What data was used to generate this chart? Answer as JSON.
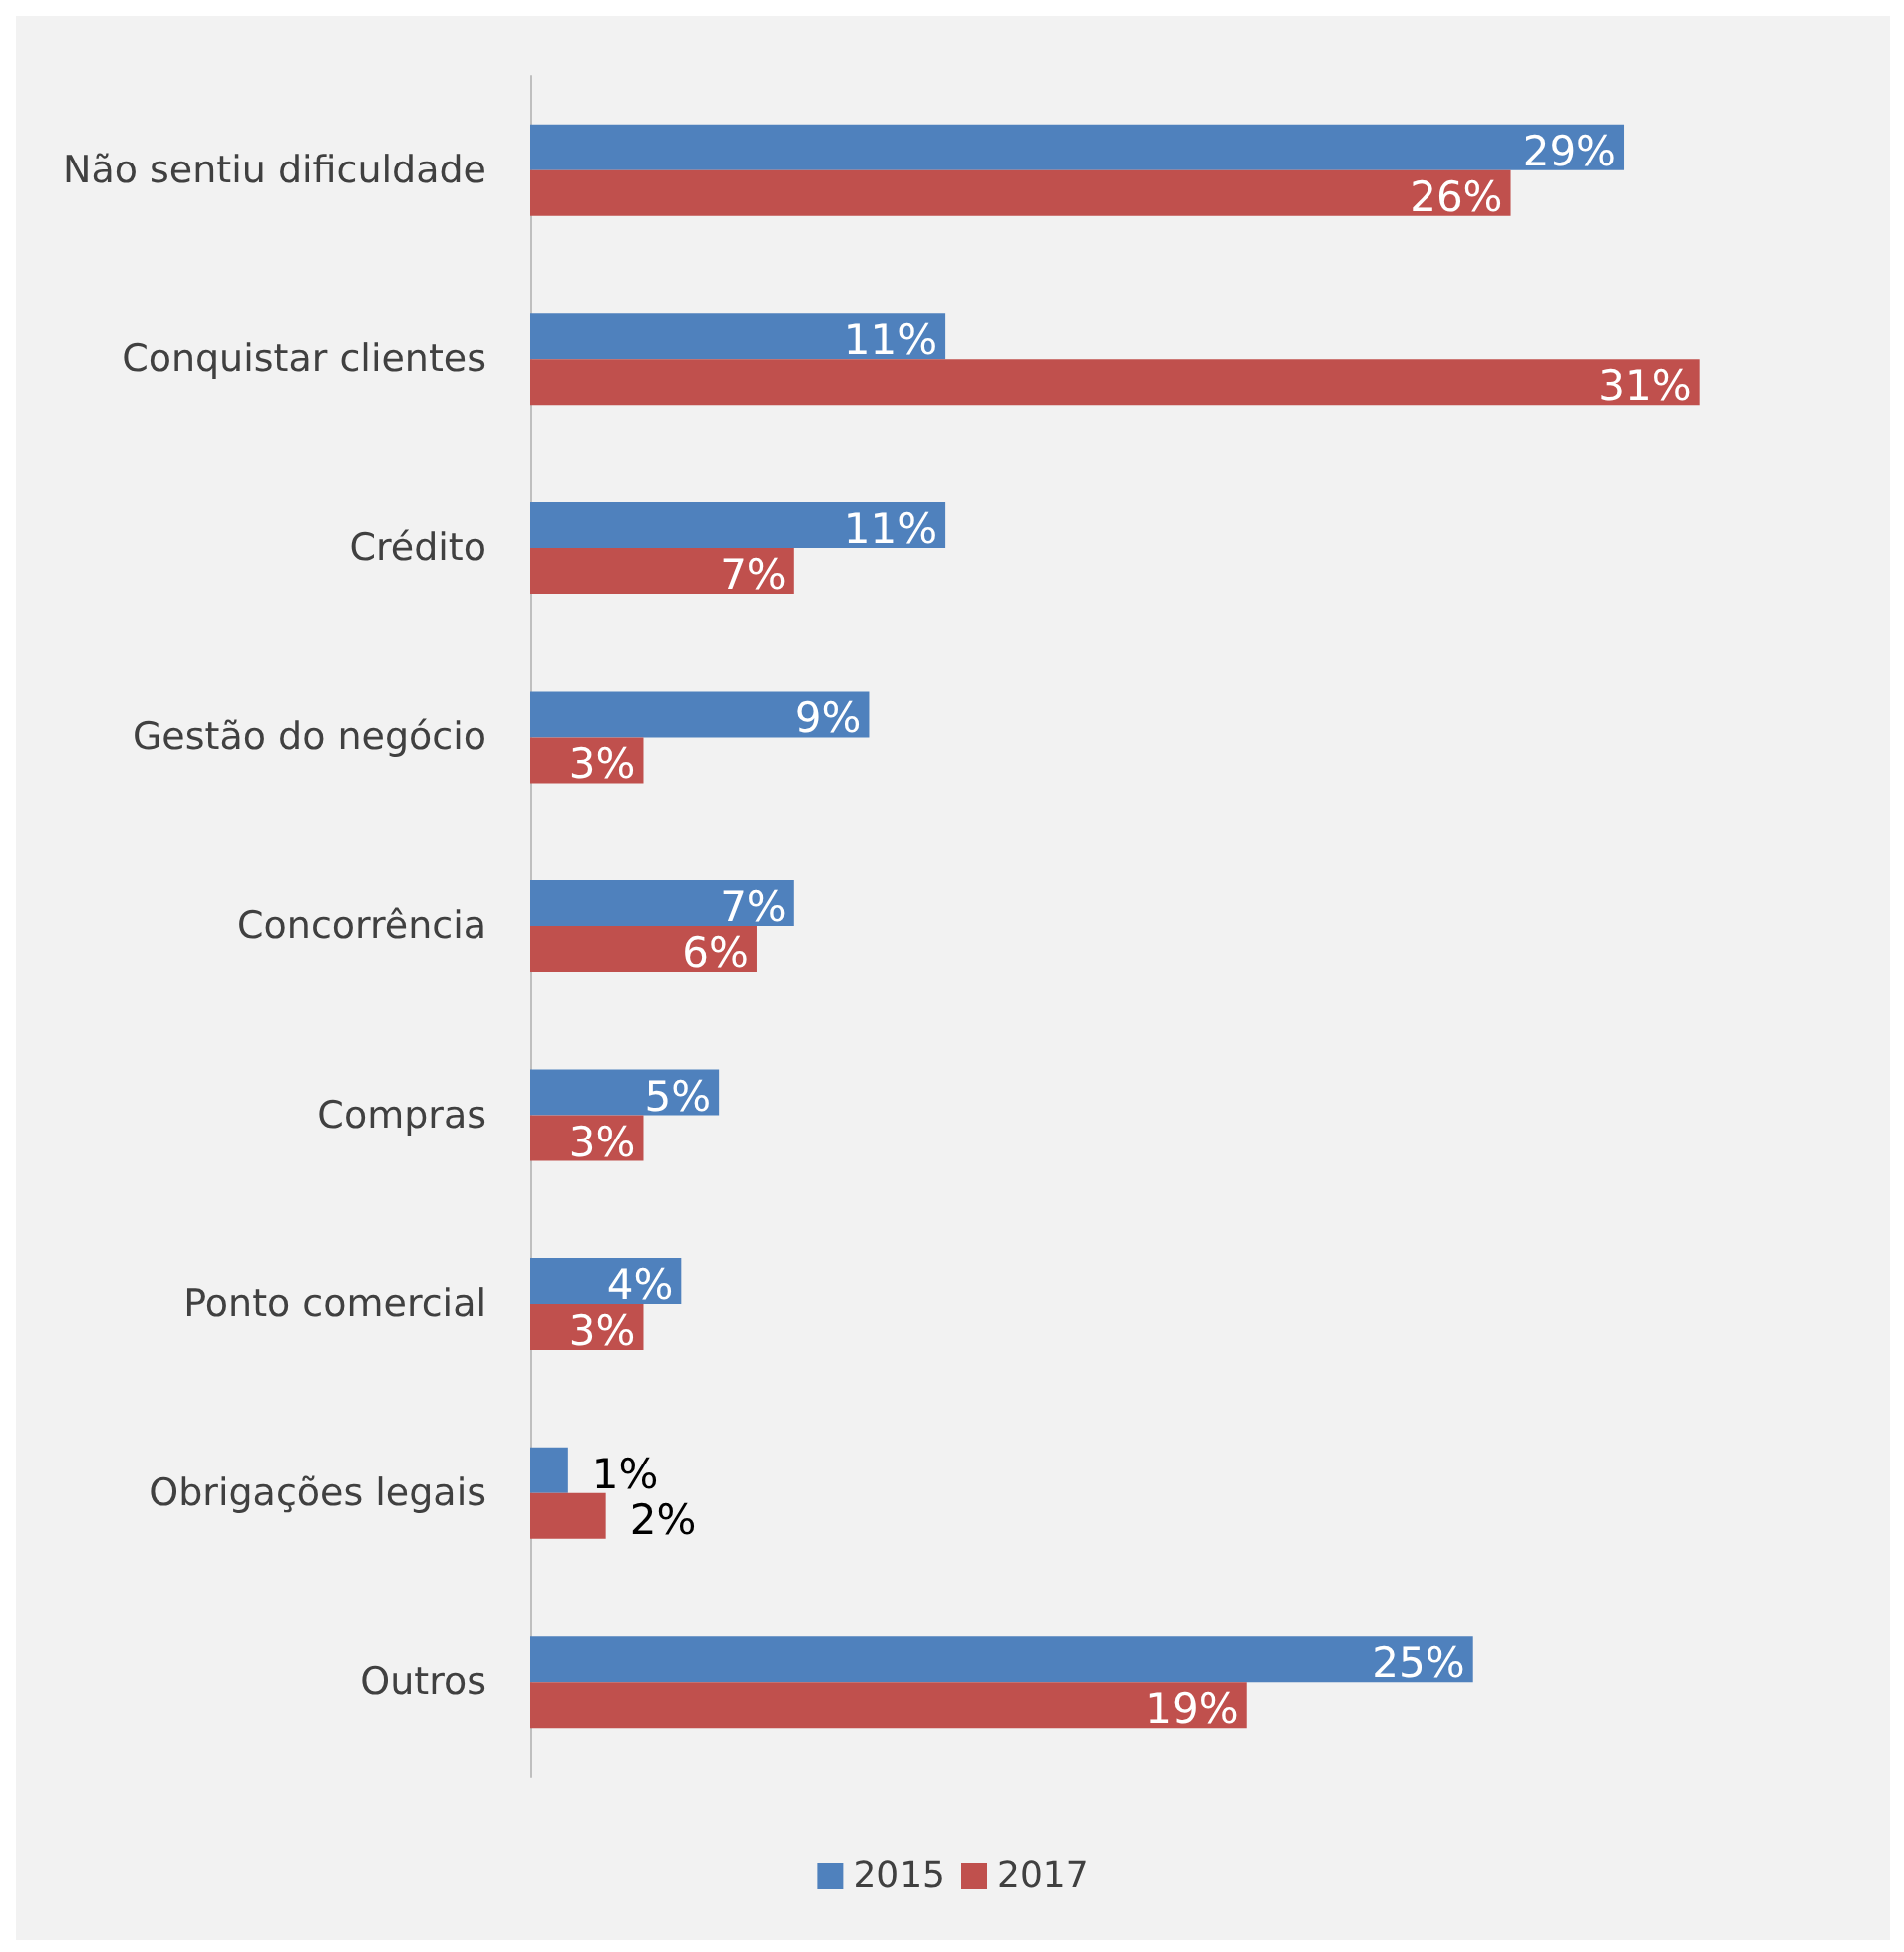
{
  "chart_data": {
    "type": "bar",
    "orientation": "horizontal",
    "categories": [
      "Não sentiu dificuldade",
      "Conquistar clientes",
      "Crédito",
      "Gestão do negócio",
      "Concorrência",
      "Compras",
      "Ponto comercial",
      "Obrigações legais",
      "Outros"
    ],
    "series": [
      {
        "name": "2015",
        "color": "#4f81bd",
        "values": [
          29,
          11,
          11,
          9,
          7,
          5,
          4,
          1,
          25
        ],
        "value_labels": [
          "29%",
          "11%",
          "11%",
          "9%",
          "7%",
          "5%",
          "4%",
          "1%",
          "25%"
        ]
      },
      {
        "name": "2017",
        "color": "#c0504d",
        "values": [
          26,
          31,
          7,
          3,
          6,
          3,
          3,
          2,
          19
        ],
        "value_labels": [
          "26%",
          "31%",
          "7%",
          "3%",
          "6%",
          "3%",
          "3%",
          "2%",
          "19%"
        ]
      }
    ],
    "legend": "bottom"
  }
}
